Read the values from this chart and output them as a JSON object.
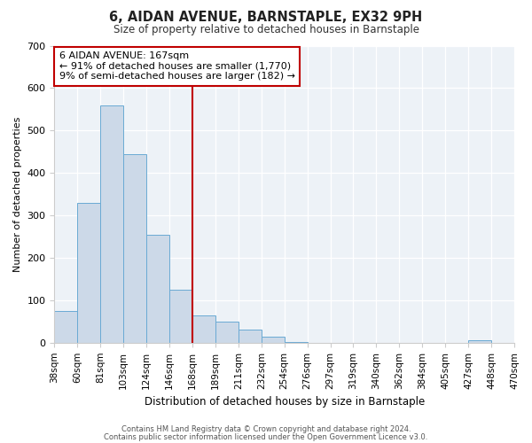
{
  "title": "6, AIDAN AVENUE, BARNSTAPLE, EX32 9PH",
  "subtitle": "Size of property relative to detached houses in Barnstaple",
  "xlabel": "Distribution of detached houses by size in Barnstaple",
  "ylabel": "Number of detached properties",
  "bar_values": [
    75,
    330,
    560,
    445,
    255,
    125,
    65,
    50,
    30,
    15,
    2,
    0,
    0,
    0,
    0,
    0,
    0,
    0,
    5,
    0
  ],
  "bar_labels": [
    "38sqm",
    "60sqm",
    "81sqm",
    "103sqm",
    "124sqm",
    "146sqm",
    "168sqm",
    "189sqm",
    "211sqm",
    "232sqm",
    "254sqm",
    "276sqm",
    "297sqm",
    "319sqm",
    "340sqm",
    "362sqm",
    "384sqm",
    "405sqm",
    "427sqm",
    "448sqm",
    "470sqm"
  ],
  "ylim": [
    0,
    700
  ],
  "yticks": [
    0,
    100,
    200,
    300,
    400,
    500,
    600,
    700
  ],
  "bar_color": "#ccd9e8",
  "bar_edge_color": "#6aaad4",
  "vline_x": 6,
  "vline_color": "#c00000",
  "annotation_text": "6 AIDAN AVENUE: 167sqm\n← 91% of detached houses are smaller (1,770)\n9% of semi-detached houses are larger (182) →",
  "annotation_box_color": "#ffffff",
  "annotation_box_edge": "#c00000",
  "footer1": "Contains HM Land Registry data © Crown copyright and database right 2024.",
  "footer2": "Contains public sector information licensed under the Open Government Licence v3.0.",
  "background_color": "#edf2f7"
}
